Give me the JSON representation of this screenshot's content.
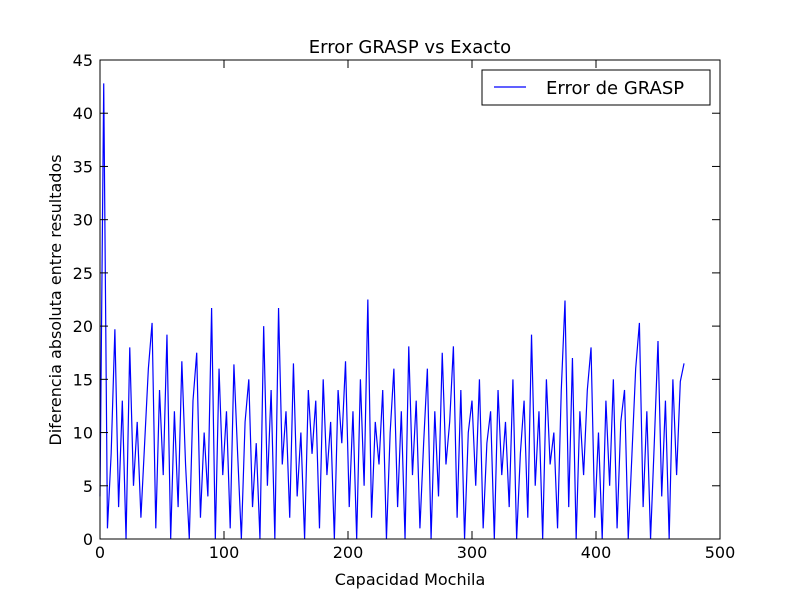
{
  "chart_data": {
    "type": "line",
    "title": "Error GRASP vs Exacto",
    "x_label": "Capacidad Mochila",
    "y_label": "Diferencia absoluta entre resultados",
    "xlim": [
      0,
      500
    ],
    "ylim": [
      0,
      45
    ],
    "xticks": [
      0,
      100,
      200,
      300,
      400,
      500
    ],
    "yticks": [
      0,
      5,
      10,
      15,
      20,
      25,
      30,
      35,
      40,
      45
    ],
    "grid": false,
    "legend_position": "upper right",
    "x": [
      0,
      3,
      6,
      9,
      12,
      15,
      18,
      21,
      24,
      27,
      30,
      33,
      36,
      39,
      42,
      45,
      48,
      51,
      54,
      57,
      60,
      63,
      66,
      69,
      72,
      75,
      78,
      81,
      84,
      87,
      90,
      93,
      96,
      99,
      102,
      105,
      108,
      111,
      114,
      117,
      120,
      123,
      126,
      129,
      132,
      135,
      138,
      141,
      144,
      147,
      150,
      153,
      156,
      159,
      162,
      165,
      168,
      171,
      174,
      177,
      180,
      183,
      186,
      189,
      192,
      195,
      198,
      201,
      204,
      207,
      210,
      213,
      216,
      219,
      222,
      225,
      228,
      231,
      234,
      237,
      240,
      243,
      246,
      249,
      252,
      255,
      258,
      261,
      264,
      267,
      270,
      273,
      276,
      279,
      282,
      285,
      288,
      291,
      294,
      297,
      300,
      303,
      306,
      309,
      312,
      315,
      318,
      321,
      324,
      327,
      330,
      333,
      336,
      339,
      342,
      345,
      348,
      351,
      354,
      357,
      360,
      363,
      366,
      369,
      372,
      375,
      378,
      381,
      384,
      387,
      390,
      393,
      396,
      399,
      402,
      405,
      408,
      411,
      414,
      417,
      420,
      423,
      426,
      429,
      432,
      435,
      438,
      441,
      444,
      447,
      450,
      453,
      456,
      459,
      462,
      465,
      468,
      471
    ],
    "series": [
      {
        "name": "Error de GRASP",
        "color": "#0000ff",
        "values": [
          4,
          42.8,
          1,
          8,
          19.7,
          3,
          13,
          0,
          18,
          5,
          11,
          2,
          9,
          16,
          20.3,
          1,
          14,
          6,
          19.2,
          0,
          12,
          3,
          16.7,
          7,
          0,
          13,
          17.5,
          2,
          10,
          4,
          21.7,
          0,
          16,
          6,
          12,
          1,
          16.4,
          8,
          0,
          11,
          15,
          3,
          9,
          0,
          20,
          5,
          14,
          0,
          21.7,
          7,
          12,
          2,
          16.5,
          4,
          10,
          0,
          14,
          8,
          13,
          1,
          15,
          6,
          11,
          0,
          14,
          9,
          16.7,
          3,
          12,
          0,
          15,
          5,
          22.5,
          2,
          11,
          7,
          14,
          0,
          10,
          16,
          3,
          12,
          0,
          18.1,
          6,
          13,
          1,
          9,
          16,
          0,
          12,
          4,
          17.5,
          7,
          11,
          18.1,
          2,
          14,
          0,
          10,
          13,
          5,
          15,
          1,
          9,
          12,
          0,
          14,
          6,
          11,
          3,
          15,
          0,
          8,
          13,
          2,
          19.2,
          5,
          12,
          0,
          15,
          7,
          10,
          1,
          14,
          22.4,
          3,
          17,
          0,
          12,
          6,
          14,
          18,
          2,
          10,
          0,
          13,
          5,
          15,
          1,
          11,
          14,
          0,
          8,
          16,
          20.3,
          3,
          12,
          0,
          9,
          18.6,
          4,
          13,
          0,
          15,
          6,
          14.8,
          16.5
        ]
      }
    ]
  }
}
